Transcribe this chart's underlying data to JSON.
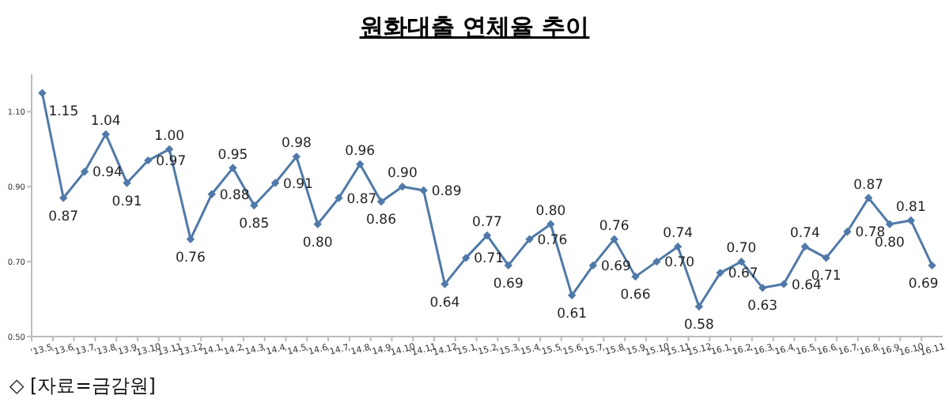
{
  "chart_data": {
    "type": "line",
    "title": "원화대출 연체율 추이",
    "annotations": [
      "◇ [자료=금감원]"
    ],
    "categories": [
      "'13.5",
      "'13.6",
      "'13.7",
      "'13.8",
      "'13.9",
      "'13.10",
      "'13.11",
      "'13.12",
      "'14.1",
      "'14.2",
      "'14.3",
      "'14.4",
      "'14.5",
      "'14.6",
      "'14.7",
      "'14.8",
      "'14.9",
      "'14.10",
      "'14.11",
      "'14.12",
      "'15.1",
      "'15.2",
      "'15.3",
      "'15.4",
      "'15.5",
      "'15.6",
      "'15.7",
      "'15.8",
      "'15.9",
      "'15.10",
      "'15.11",
      "'15.12",
      "'16.1",
      "'16.2",
      "'16.3",
      "'16.4",
      "'16.5",
      "'16.6",
      "'16.7",
      "'16.8",
      "'16.9",
      "'16.10",
      "'16.11"
    ],
    "values": [
      1.15,
      0.87,
      0.94,
      1.04,
      0.91,
      0.97,
      1.0,
      0.76,
      0.88,
      0.95,
      0.85,
      0.91,
      0.98,
      0.8,
      0.87,
      0.96,
      0.86,
      0.9,
      0.89,
      0.64,
      0.71,
      0.77,
      0.69,
      0.76,
      0.8,
      0.61,
      0.69,
      0.76,
      0.66,
      0.7,
      0.74,
      0.58,
      0.67,
      0.7,
      0.63,
      0.64,
      0.74,
      0.71,
      0.78,
      0.87,
      0.8,
      0.81,
      0.69
    ],
    "color": "#4f79a8",
    "marker": "diamond",
    "line_style": "solid",
    "ylim": [
      0.5,
      1.2
    ],
    "yticks": [
      {
        "value": 0.5,
        "label": "0.50"
      },
      {
        "value": 0.7,
        "label": "0.70"
      },
      {
        "value": 0.9,
        "label": "0.90"
      },
      {
        "value": 1.1,
        "label": "1.10"
      }
    ],
    "value_labels": [
      "1.15",
      "0.87",
      "0.94",
      "1.04",
      "0.91",
      "0.97",
      "1.00",
      "0.76",
      "0.88",
      "0.95",
      "0.85",
      "0.91",
      "0.98",
      "0.80",
      "0.87",
      "0.96",
      "0.86",
      "0.90",
      "0.89",
      "0.64",
      "0.71",
      "0.77",
      "0.69",
      "0.76",
      "0.80",
      "0.61",
      "0.69",
      "0.76",
      "0.66",
      "0.70",
      "0.74",
      "0.58",
      "0.67",
      "0.70",
      "0.63",
      "0.64",
      "0.74",
      "0.71",
      "0.78",
      "0.87",
      "0.80",
      "0.81",
      "0.69"
    ]
  }
}
